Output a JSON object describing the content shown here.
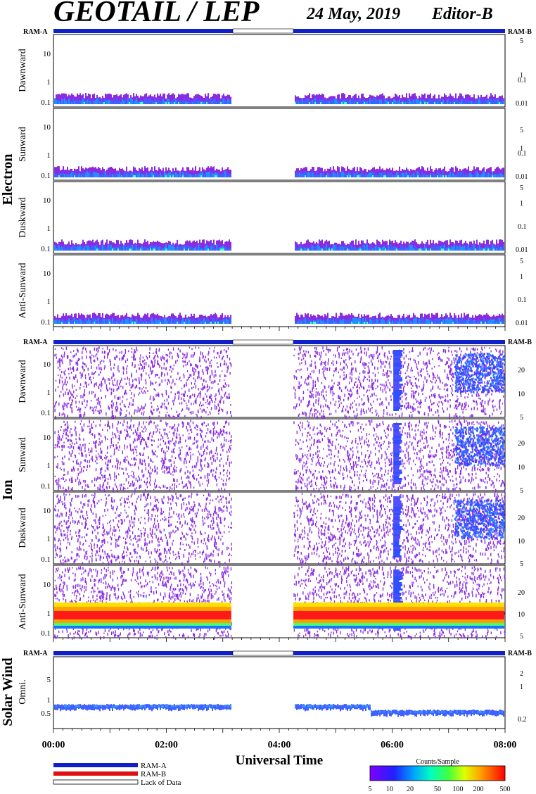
{
  "header": {
    "instrument": "GEOTAIL / LEP",
    "date": "24 May, 2019",
    "editor": "Editor-B"
  },
  "sections": {
    "electron": "Electron",
    "ion": "Ion",
    "solar_wind": "Solar Wind"
  },
  "ram_labels": {
    "left": "RAM-A",
    "right": "RAM-B"
  },
  "xaxis": {
    "label": "Universal Time",
    "ticks": [
      "00:00",
      "02:00",
      "04:00",
      "06:00",
      "08:00"
    ]
  },
  "legend": {
    "ram_a": "RAM-A",
    "ram_b": "RAM-B",
    "lack": "Lack of Data"
  },
  "colorbar": {
    "title": "Counts/Sample",
    "ticks": [
      "5",
      "10",
      "20",
      "50",
      "100",
      "200",
      "500"
    ]
  },
  "colors": {
    "ram_a": "#1020c8",
    "ram_b": "#e01010",
    "lack": "#ffffff"
  },
  "chart_data": {
    "type": "heatmap",
    "time_range_hours": [
      0,
      8
    ],
    "data_gap_hours": [
      3.15,
      4.25
    ],
    "status_bar": [
      {
        "state": "RAM-A",
        "start": 0,
        "end": 3.15
      },
      {
        "state": "Lack of Data",
        "start": 3.15,
        "end": 4.25
      },
      {
        "state": "RAM-A",
        "start": 4.25,
        "end": 8
      }
    ],
    "panels": [
      {
        "group": "Electron",
        "label": "Dawnward",
        "left_ticks": [
          "10",
          "1",
          "0.1"
        ],
        "right_ticks": [
          "5",
          "1",
          "0.1",
          "0.01"
        ]
      },
      {
        "group": "Electron",
        "label": "Sunward",
        "left_ticks": [
          "10",
          "1",
          "0.1"
        ],
        "right_ticks": [
          "5",
          "1",
          "0.1",
          "0.01"
        ]
      },
      {
        "group": "Electron",
        "label": "Duskward",
        "left_ticks": [
          "10",
          "1",
          "0.1"
        ],
        "right_ticks": [
          "5",
          "1",
          "0.1",
          "0.01"
        ]
      },
      {
        "group": "Electron",
        "label": "Anti-Sunward",
        "left_ticks": [
          "10",
          "1",
          "0.1"
        ],
        "right_ticks": [
          "5",
          "1",
          "0.1",
          "0.01"
        ]
      },
      {
        "group": "Ion",
        "label": "Dawnward",
        "left_ticks": [
          "10",
          "1",
          "0.1"
        ],
        "right_ticks": [
          "20",
          "10",
          "5"
        ]
      },
      {
        "group": "Ion",
        "label": "Sunward",
        "left_ticks": [
          "10",
          "1",
          "0.1"
        ],
        "right_ticks": [
          "20",
          "10",
          "5"
        ]
      },
      {
        "group": "Ion",
        "label": "Duskward",
        "left_ticks": [
          "10",
          "1",
          "0.1"
        ],
        "right_ticks": [
          "20",
          "10",
          "5"
        ]
      },
      {
        "group": "Ion",
        "label": "Anti-Sunward",
        "left_ticks": [
          "10",
          "1",
          "0.1"
        ],
        "right_ticks": [
          "20",
          "10",
          "5"
        ]
      },
      {
        "group": "Solar Wind",
        "label": "Omni.",
        "left_ticks": [
          "5",
          "1",
          "0.5"
        ],
        "right_ticks": [
          "2",
          "1",
          "0.2"
        ]
      }
    ]
  }
}
